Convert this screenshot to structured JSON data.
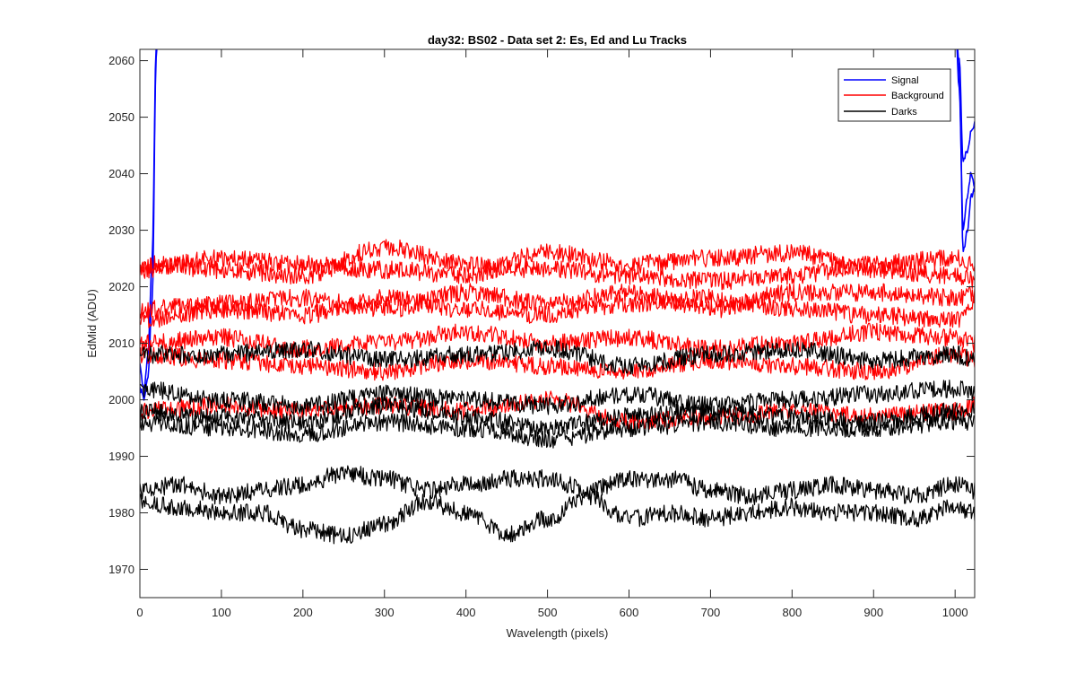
{
  "chart_data": {
    "type": "line",
    "title": "day32: BS02 - Data set 2: Es, Ed and Lu Tracks",
    "xlabel": "Wavelength (pixels)",
    "ylabel": "EdMid (ADU)",
    "xlim": [
      0,
      1024
    ],
    "ylim": [
      1965,
      2062
    ],
    "xticks": [
      0,
      100,
      200,
      300,
      400,
      500,
      600,
      700,
      800,
      900,
      1000
    ],
    "yticks": [
      1970,
      1980,
      1990,
      2000,
      2010,
      2020,
      2030,
      2040,
      2050,
      2060
    ],
    "grid": false,
    "legend_position": "top-right",
    "legend": [
      {
        "name": "Signal",
        "color": "#0000ff"
      },
      {
        "name": "Background",
        "color": "#ff0000"
      },
      {
        "name": "Darks",
        "color": "#000000"
      }
    ],
    "series": [
      {
        "group": "Signal",
        "color": "#0000ff",
        "points": [
          [
            0,
            2002
          ],
          [
            5,
            2000
          ],
          [
            10,
            2004
          ],
          [
            15,
            2018
          ],
          [
            20,
            2060
          ],
          [
            25,
            2090
          ]
        ]
      },
      {
        "group": "Signal",
        "color": "#0000ff",
        "points": [
          [
            0,
            2006
          ],
          [
            5,
            2002
          ],
          [
            10,
            2008
          ],
          [
            15,
            2025
          ],
          [
            20,
            2062
          ],
          [
            25,
            2095
          ]
        ]
      },
      {
        "group": "Signal",
        "color": "#0000ff",
        "points": [
          [
            1000,
            2070
          ],
          [
            1005,
            2055
          ],
          [
            1010,
            2030
          ],
          [
            1015,
            2036
          ],
          [
            1020,
            2040
          ],
          [
            1024,
            2038
          ]
        ]
      },
      {
        "group": "Signal",
        "color": "#0000ff",
        "points": [
          [
            1000,
            2068
          ],
          [
            1005,
            2060
          ],
          [
            1010,
            2042
          ],
          [
            1015,
            2044
          ],
          [
            1020,
            2048
          ],
          [
            1024,
            2049
          ]
        ]
      },
      {
        "group": "Signal",
        "color": "#0000ff",
        "points": [
          [
            1000,
            2066
          ],
          [
            1005,
            2058
          ],
          [
            1010,
            2026
          ],
          [
            1015,
            2030
          ],
          [
            1020,
            2036
          ],
          [
            1024,
            2037
          ]
        ]
      },
      {
        "group": "Background",
        "color": "#ff0000",
        "points": [
          [
            0,
            2024
          ],
          [
            100,
            2023
          ],
          [
            200,
            2022
          ],
          [
            300,
            2027
          ],
          [
            400,
            2024
          ],
          [
            500,
            2023
          ],
          [
            600,
            2022
          ],
          [
            700,
            2021
          ],
          [
            800,
            2022
          ],
          [
            900,
            2024
          ],
          [
            1000,
            2025
          ],
          [
            1024,
            2024
          ]
        ]
      },
      {
        "group": "Background",
        "color": "#ff0000",
        "points": [
          [
            0,
            2023
          ],
          [
            100,
            2025
          ],
          [
            200,
            2024
          ],
          [
            300,
            2023
          ],
          [
            400,
            2022
          ],
          [
            500,
            2026
          ],
          [
            600,
            2024
          ],
          [
            700,
            2025
          ],
          [
            800,
            2026
          ],
          [
            900,
            2023
          ],
          [
            1000,
            2022
          ],
          [
            1024,
            2021
          ]
        ]
      },
      {
        "group": "Background",
        "color": "#ff0000",
        "points": [
          [
            0,
            2016
          ],
          [
            100,
            2017
          ],
          [
            200,
            2018
          ],
          [
            300,
            2016
          ],
          [
            400,
            2019
          ],
          [
            500,
            2017
          ],
          [
            600,
            2019
          ],
          [
            700,
            2016
          ],
          [
            800,
            2019
          ],
          [
            900,
            2019
          ],
          [
            1000,
            2018
          ],
          [
            1024,
            2019
          ]
        ]
      },
      {
        "group": "Background",
        "color": "#ff0000",
        "points": [
          [
            0,
            2014
          ],
          [
            100,
            2016
          ],
          [
            200,
            2015
          ],
          [
            300,
            2018
          ],
          [
            400,
            2016
          ],
          [
            500,
            2015
          ],
          [
            600,
            2017
          ],
          [
            700,
            2018
          ],
          [
            800,
            2016
          ],
          [
            900,
            2015
          ],
          [
            1000,
            2014
          ],
          [
            1024,
            2017
          ]
        ]
      },
      {
        "group": "Background",
        "color": "#ff0000",
        "points": [
          [
            0,
            2010
          ],
          [
            100,
            2011
          ],
          [
            200,
            2009
          ],
          [
            300,
            2010
          ],
          [
            400,
            2012
          ],
          [
            500,
            2010
          ],
          [
            600,
            2011
          ],
          [
            700,
            2009
          ],
          [
            800,
            2010
          ],
          [
            900,
            2012
          ],
          [
            1000,
            2011
          ],
          [
            1024,
            2010
          ]
        ]
      },
      {
        "group": "Background",
        "color": "#ff0000",
        "points": [
          [
            0,
            2008
          ],
          [
            100,
            2007
          ],
          [
            200,
            2006
          ],
          [
            300,
            2005
          ],
          [
            400,
            2007
          ],
          [
            500,
            2006
          ],
          [
            600,
            2005
          ],
          [
            700,
            2007
          ],
          [
            800,
            2006
          ],
          [
            900,
            2005
          ],
          [
            1000,
            2008
          ],
          [
            1024,
            2007
          ]
        ]
      },
      {
        "group": "Background",
        "color": "#ff0000",
        "points": [
          [
            0,
            1998
          ],
          [
            100,
            1999
          ],
          [
            200,
            1998
          ],
          [
            300,
            1999
          ],
          [
            400,
            1998
          ],
          [
            500,
            2000
          ],
          [
            600,
            1996
          ],
          [
            700,
            1997
          ],
          [
            800,
            1998
          ],
          [
            900,
            1997
          ],
          [
            1000,
            1998
          ],
          [
            1024,
            1999
          ]
        ]
      },
      {
        "group": "Darks",
        "color": "#000000",
        "points": [
          [
            0,
            2008
          ],
          [
            100,
            2008
          ],
          [
            200,
            2009
          ],
          [
            300,
            2007
          ],
          [
            400,
            2008
          ],
          [
            500,
            2009
          ],
          [
            600,
            2006
          ],
          [
            700,
            2008
          ],
          [
            800,
            2009
          ],
          [
            900,
            2007
          ],
          [
            1000,
            2008
          ],
          [
            1024,
            2007
          ]
        ]
      },
      {
        "group": "Darks",
        "color": "#000000",
        "points": [
          [
            0,
            2002
          ],
          [
            100,
            2000
          ],
          [
            200,
            1999
          ],
          [
            300,
            2001
          ],
          [
            400,
            2000
          ],
          [
            500,
            1999
          ],
          [
            600,
            2001
          ],
          [
            700,
            1999
          ],
          [
            800,
            2000
          ],
          [
            900,
            2001
          ],
          [
            1000,
            2002
          ],
          [
            1024,
            2001
          ]
        ]
      },
      {
        "group": "Darks",
        "color": "#000000",
        "points": [
          [
            0,
            1998
          ],
          [
            100,
            1997
          ],
          [
            200,
            1996
          ],
          [
            300,
            1999
          ],
          [
            400,
            1997
          ],
          [
            500,
            1995
          ],
          [
            600,
            1997
          ],
          [
            700,
            1998
          ],
          [
            800,
            1997
          ],
          [
            900,
            1996
          ],
          [
            1000,
            1998
          ],
          [
            1024,
            1998
          ]
        ]
      },
      {
        "group": "Darks",
        "color": "#000000",
        "points": [
          [
            0,
            1996
          ],
          [
            100,
            1995
          ],
          [
            200,
            1994
          ],
          [
            300,
            1996
          ],
          [
            400,
            1995
          ],
          [
            500,
            1993
          ],
          [
            600,
            1995
          ],
          [
            700,
            1996
          ],
          [
            800,
            1995
          ],
          [
            900,
            1995
          ],
          [
            1000,
            1996
          ],
          [
            1024,
            1996
          ]
        ]
      },
      {
        "group": "Darks",
        "color": "#000000",
        "points": [
          [
            0,
            1984
          ],
          [
            50,
            1985
          ],
          [
            100,
            1983
          ],
          [
            150,
            1984
          ],
          [
            200,
            1985
          ],
          [
            250,
            1987
          ],
          [
            300,
            1986
          ],
          [
            350,
            1984
          ],
          [
            400,
            1985
          ],
          [
            450,
            1986
          ],
          [
            500,
            1986
          ],
          [
            550,
            1984
          ],
          [
            600,
            1986
          ],
          [
            650,
            1986
          ],
          [
            700,
            1984
          ],
          [
            750,
            1983
          ],
          [
            800,
            1984
          ],
          [
            850,
            1985
          ],
          [
            900,
            1984
          ],
          [
            950,
            1983
          ],
          [
            1000,
            1985
          ],
          [
            1024,
            1984
          ]
        ]
      },
      {
        "group": "Darks",
        "color": "#000000",
        "points": [
          [
            0,
            1982
          ],
          [
            50,
            1981
          ],
          [
            100,
            1980
          ],
          [
            150,
            1980
          ],
          [
            200,
            1977
          ],
          [
            250,
            1976
          ],
          [
            300,
            1978
          ],
          [
            350,
            1982
          ],
          [
            400,
            1980
          ],
          [
            450,
            1976
          ],
          [
            500,
            1979
          ],
          [
            550,
            1983
          ],
          [
            600,
            1979
          ],
          [
            650,
            1980
          ],
          [
            700,
            1979
          ],
          [
            750,
            1980
          ],
          [
            800,
            1981
          ],
          [
            850,
            1980
          ],
          [
            900,
            1980
          ],
          [
            950,
            1979
          ],
          [
            1000,
            1981
          ],
          [
            1024,
            1980
          ]
        ]
      }
    ]
  }
}
